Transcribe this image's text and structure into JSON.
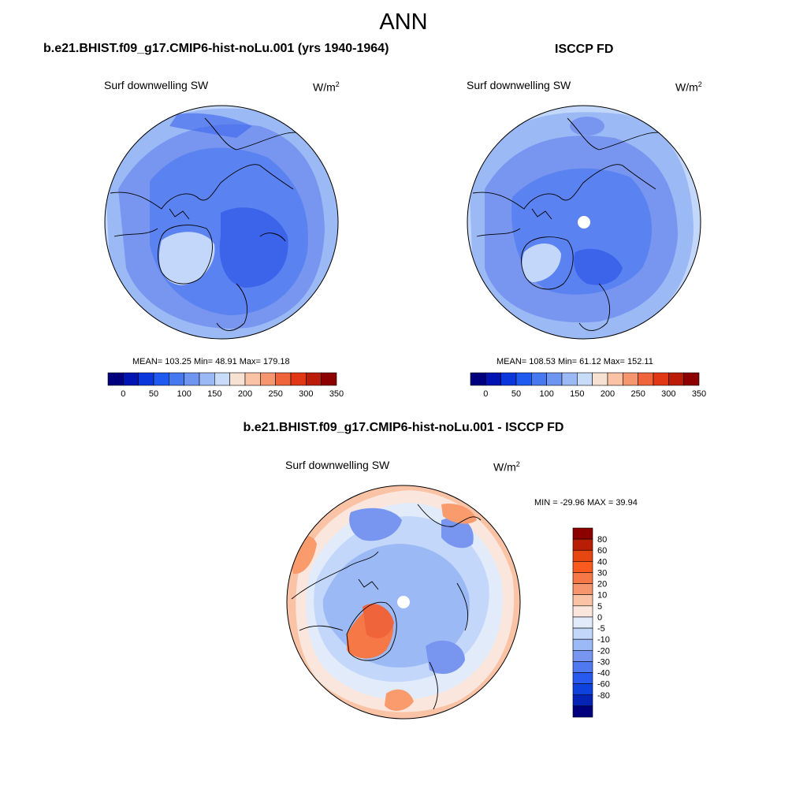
{
  "title": "ANN",
  "panels": {
    "model": {
      "title": "b.e21.BHIST.f09_g17.CMIP6-hist-noLu.001 (yrs 1940-1964)",
      "variable": "Surf downwelling SW",
      "units": "W/m",
      "units_sup": "2",
      "stats": "MEAN= 103.25  Min=  48.91  Max= 179.18"
    },
    "obs": {
      "title": "ISCCP FD",
      "variable": "Surf downwelling SW",
      "units": "W/m",
      "units_sup": "2",
      "stats": "MEAN= 108.53  Min=  61.12  Max= 152.11"
    },
    "diff": {
      "title": "b.e21.BHIST.f09_g17.CMIP6-hist-noLu.001 - ISCCP FD",
      "variable": "Surf downwelling SW",
      "units": "W/m",
      "units_sup": "2",
      "stats": "MIN = -29.96 MAX =  39.94"
    }
  },
  "colorbars": {
    "abs": {
      "colors": [
        "#00007f",
        "#0014b4",
        "#0a37dc",
        "#1e5af0",
        "#4678f0",
        "#6e96f0",
        "#9bb9f5",
        "#c8dcfa",
        "#f7e1d2",
        "#fac3a5",
        "#f5966e",
        "#f0643c",
        "#e13714",
        "#bb1c08",
        "#8c0000"
      ],
      "labels": [
        "0",
        "50",
        "100",
        "150",
        "200",
        "250",
        "300",
        "350"
      ]
    },
    "diff": {
      "colors": [
        "#8c0000",
        "#b81e05",
        "#e6460f",
        "#fa5a1e",
        "#f57846",
        "#f5966e",
        "#fac3a5",
        "#fae6dc",
        "#e1ebfa",
        "#c3d7fa",
        "#9bb9f5",
        "#7896f0",
        "#5078f0",
        "#285af0",
        "#0f41dc",
        "#0523b4",
        "#00007f"
      ],
      "labels": [
        "80",
        "60",
        "40",
        "30",
        "20",
        "10",
        "5",
        "0",
        "-5",
        "-10",
        "-20",
        "-30",
        "-40",
        "-60",
        "-80"
      ]
    }
  }
}
